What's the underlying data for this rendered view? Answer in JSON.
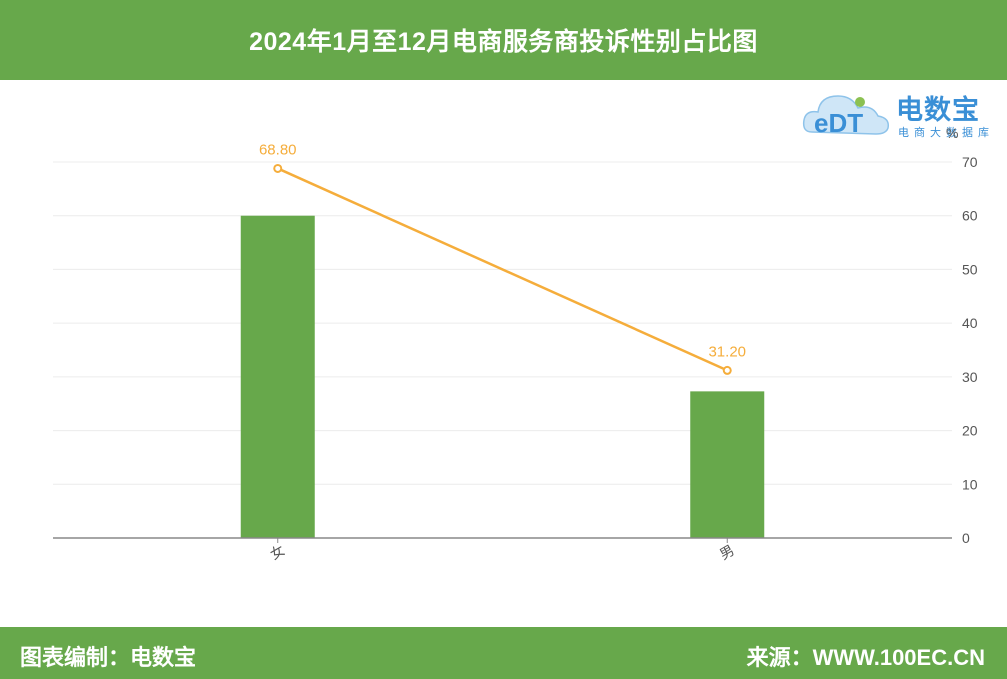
{
  "header": {
    "title": "2024年1月至12月电商服务商投诉性别占比图"
  },
  "logo": {
    "brand": "电数宝",
    "sub": "电商大数据库",
    "mark": "eDT"
  },
  "footer": {
    "left": "图表编制：电数宝",
    "right": "来源：WWW.100EC.CN"
  },
  "colors": {
    "bar": "#67a84b",
    "line": "#f5ad3b",
    "header": "#67a84b",
    "logo": "#3a8fd6"
  },
  "chart_data": {
    "type": "bar",
    "categories": [
      "女",
      "男"
    ],
    "series": [
      {
        "type": "bar",
        "values": [
          60,
          27.3
        ]
      },
      {
        "type": "line",
        "values": [
          68.8,
          31.2
        ],
        "labels": [
          "68.80",
          "31.20"
        ]
      }
    ],
    "y_axis": {
      "position": "right",
      "unit": "%",
      "min": 0,
      "max": 70,
      "ticks": [
        0,
        10,
        20,
        30,
        40,
        50,
        60,
        70
      ]
    },
    "grid": true
  }
}
